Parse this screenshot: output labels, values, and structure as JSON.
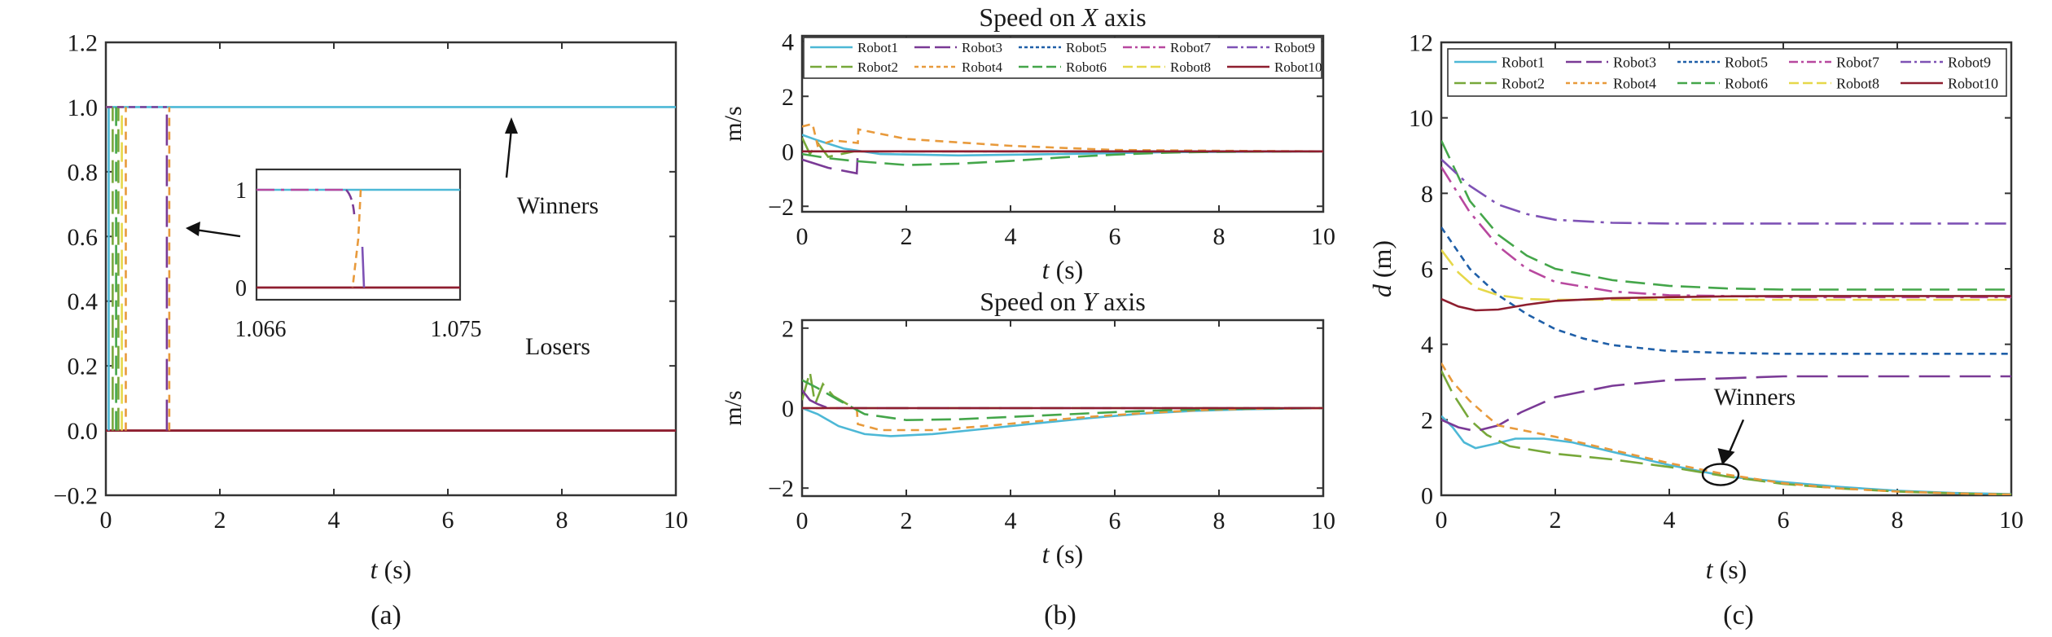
{
  "figure_labels": {
    "a": "(a)",
    "b": "(b)",
    "c": "(c)"
  },
  "colors": {
    "Robot1": "#4db8d6",
    "Robot2": "#77a83a",
    "Robot3": "#7a3a96",
    "Robot4": "#e89a3c",
    "Robot5": "#1f5fa8",
    "Robot6": "#44a64a",
    "Robot7": "#b8489f",
    "Robot8": "#e6d84a",
    "Robot9": "#7e52b5",
    "Robot10": "#8e1e2f"
  },
  "chart_data": [
    {
      "id": "a",
      "type": "line",
      "xlabel": "t (s)",
      "ylabel": "",
      "xlim": [
        0,
        10
      ],
      "ylim": [
        -0.2,
        1.2
      ],
      "xticks": [
        0,
        2,
        4,
        6,
        8,
        10
      ],
      "yticks": [
        -0.2,
        0.0,
        0.2,
        0.4,
        0.6,
        0.8,
        1.0,
        1.2
      ],
      "ytick_labels": [
        "−0.2",
        "0.0",
        "0.2",
        "0.4",
        "0.6",
        "0.8",
        "1.0",
        "1.2"
      ],
      "annotations": {
        "winners": "Winners",
        "losers": "Losers"
      },
      "switch_times": [
        0.05,
        0.12,
        0.18,
        0.22,
        0.28,
        0.35,
        1.07
      ],
      "winners_level": 1.0,
      "losers_level": 0.0,
      "inset": {
        "xlim": [
          1.066,
          1.075
        ],
        "xtick_labels": [
          "1.066",
          "1.075"
        ],
        "yticks": [
          "0",
          "1"
        ]
      }
    },
    {
      "id": "b1",
      "type": "line",
      "title": "Speed on X axis",
      "xlabel": "t (s)",
      "ylabel": "m/s",
      "xlim": [
        0,
        10
      ],
      "ylim": [
        -2.2,
        4.2
      ],
      "xticks": [
        0,
        2,
        4,
        6,
        8,
        10
      ],
      "yticks": [
        -2,
        0,
        2,
        4
      ],
      "ytick_labels": [
        "−2",
        "0",
        "2",
        "4"
      ],
      "legend": [
        "Robot1",
        "Robot3",
        "Robot5",
        "Robot7",
        "Robot9",
        "Robot2",
        "Robot4",
        "Robot6",
        "Robot8",
        "Robot10"
      ],
      "series": [
        {
          "name": "Robot1",
          "x": [
            0,
            0.3,
            0.8,
            1.5,
            3,
            5,
            7,
            10
          ],
          "y": [
            0.6,
            0.4,
            0.1,
            -0.1,
            -0.15,
            -0.1,
            -0.03,
            0
          ]
        },
        {
          "name": "Robot2",
          "x": [
            0,
            0.15,
            0.3,
            0.5,
            1,
            10
          ],
          "y": [
            0.5,
            -0.1,
            0.3,
            -0.2,
            0,
            0
          ]
        },
        {
          "name": "Robot3",
          "x": [
            0,
            0.5,
            1.05,
            1.07,
            2,
            10
          ],
          "y": [
            -0.3,
            -0.6,
            -0.8,
            0,
            0,
            0
          ]
        },
        {
          "name": "Robot4",
          "x": [
            0,
            0.2,
            0.3,
            0.6,
            1.07,
            1.08,
            2,
            4,
            6,
            8,
            10
          ],
          "y": [
            0.9,
            1.0,
            0.2,
            0.4,
            0.3,
            0.8,
            0.45,
            0.2,
            0.05,
            0.02,
            0
          ]
        },
        {
          "name": "Robot6",
          "x": [
            0,
            0.5,
            1,
            2,
            3,
            4,
            5,
            6,
            7,
            8,
            10
          ],
          "y": [
            -0.1,
            -0.25,
            -0.35,
            -0.5,
            -0.45,
            -0.35,
            -0.22,
            -0.12,
            -0.05,
            -0.02,
            0
          ]
        },
        {
          "name": "Robot10",
          "x": [
            0,
            10
          ],
          "y": [
            0,
            0
          ]
        }
      ]
    },
    {
      "id": "b2",
      "type": "line",
      "title": "Speed on Y axis",
      "xlabel": "t (s)",
      "ylabel": "m/s",
      "xlim": [
        0,
        10
      ],
      "ylim": [
        -2.2,
        2.2
      ],
      "xticks": [
        0,
        2,
        4,
        6,
        8,
        10
      ],
      "yticks": [
        -2,
        0,
        2
      ],
      "ytick_labels": [
        "−2",
        "0",
        "2"
      ],
      "series": [
        {
          "name": "Robot1",
          "x": [
            0,
            0.3,
            0.7,
            1.2,
            1.7,
            2.5,
            3.5,
            4.5,
            5.5,
            6.5,
            7.5,
            8.5,
            10
          ],
          "y": [
            0,
            -0.15,
            -0.45,
            -0.65,
            -0.7,
            -0.65,
            -0.52,
            -0.38,
            -0.25,
            -0.14,
            -0.07,
            -0.03,
            0
          ]
        },
        {
          "name": "Robot2",
          "x": [
            0,
            0.15,
            0.25,
            0.4,
            0.6,
            1.0,
            10
          ],
          "y": [
            0.2,
            0.9,
            0.1,
            0.6,
            0.3,
            0,
            0
          ]
        },
        {
          "name": "Robot3",
          "x": [
            0,
            0.15,
            0.3,
            0.5,
            10
          ],
          "y": [
            0.45,
            0.2,
            0.1,
            0,
            0
          ]
        },
        {
          "name": "Robot4",
          "x": [
            0,
            1.0,
            1.05,
            1.07,
            1.5,
            2.5,
            3.5,
            4.5,
            5.5,
            6.5,
            7.5,
            8.5,
            10
          ],
          "y": [
            0,
            0,
            0,
            -0.4,
            -0.55,
            -0.55,
            -0.45,
            -0.33,
            -0.22,
            -0.13,
            -0.06,
            -0.02,
            0
          ]
        },
        {
          "name": "Robot6",
          "x": [
            0,
            0.3,
            0.7,
            1.2,
            2,
            3,
            4,
            5,
            6,
            7,
            8,
            10
          ],
          "y": [
            0.7,
            0.5,
            0.2,
            -0.15,
            -0.3,
            -0.28,
            -0.22,
            -0.16,
            -0.1,
            -0.05,
            -0.02,
            0
          ]
        },
        {
          "name": "Robot10",
          "x": [
            0,
            10
          ],
          "y": [
            0,
            0
          ]
        }
      ]
    },
    {
      "id": "c",
      "type": "line",
      "xlabel": "t (s)",
      "ylabel": "d (m)",
      "xlim": [
        0,
        10
      ],
      "ylim": [
        0,
        12
      ],
      "xticks": [
        0,
        2,
        4,
        6,
        8,
        10
      ],
      "yticks": [
        0,
        2,
        4,
        6,
        8,
        10,
        12
      ],
      "legend": [
        "Robot1",
        "Robot3",
        "Robot5",
        "Robot7",
        "Robot9",
        "Robot2",
        "Robot4",
        "Robot6",
        "Robot8",
        "Robot10"
      ],
      "annotation": "Winners",
      "series": [
        {
          "name": "Robot1",
          "x": [
            0,
            0.2,
            0.4,
            0.6,
            0.9,
            1.3,
            1.8,
            2.3,
            3,
            4,
            5,
            6,
            7,
            8,
            9,
            10
          ],
          "y": [
            2.1,
            1.8,
            1.4,
            1.25,
            1.35,
            1.5,
            1.5,
            1.4,
            1.15,
            0.8,
            0.5,
            0.35,
            0.22,
            0.12,
            0.06,
            0.03
          ]
        },
        {
          "name": "Robot2",
          "x": [
            0,
            0.2,
            0.5,
            0.8,
            1.2,
            2,
            3,
            4,
            5,
            6,
            7,
            8,
            9,
            10
          ],
          "y": [
            3.3,
            2.7,
            2.0,
            1.6,
            1.3,
            1.1,
            0.95,
            0.75,
            0.5,
            0.3,
            0.18,
            0.1,
            0.05,
            0.02
          ]
        },
        {
          "name": "Robot3",
          "x": [
            0,
            0.3,
            0.6,
            1.0,
            1.4,
            2,
            3,
            4,
            5,
            6,
            7,
            8,
            9,
            10
          ],
          "y": [
            2.0,
            1.8,
            1.7,
            1.85,
            2.2,
            2.6,
            2.9,
            3.05,
            3.1,
            3.15,
            3.15,
            3.15,
            3.15,
            3.15
          ]
        },
        {
          "name": "Robot4",
          "x": [
            0,
            0.2,
            0.5,
            0.8,
            1.0,
            1.5,
            2,
            3,
            4,
            5,
            6,
            7,
            8,
            9,
            10
          ],
          "y": [
            3.5,
            3.0,
            2.5,
            2.1,
            1.85,
            1.7,
            1.55,
            1.2,
            0.85,
            0.55,
            0.32,
            0.18,
            0.1,
            0.05,
            0.02
          ]
        },
        {
          "name": "Robot5",
          "x": [
            0,
            0.5,
            1,
            1.5,
            2,
            2.5,
            3,
            4,
            5,
            6,
            7,
            8,
            9,
            10
          ],
          "y": [
            7.1,
            6.0,
            5.3,
            4.8,
            4.4,
            4.15,
            3.98,
            3.82,
            3.77,
            3.75,
            3.75,
            3.75,
            3.75,
            3.75
          ]
        },
        {
          "name": "Robot6",
          "x": [
            0,
            0.5,
            1,
            1.5,
            2,
            3,
            4,
            5,
            6,
            7,
            8,
            9,
            10
          ],
          "y": [
            9.4,
            7.8,
            6.9,
            6.35,
            6.0,
            5.7,
            5.55,
            5.48,
            5.45,
            5.45,
            5.45,
            5.45,
            5.45
          ]
        },
        {
          "name": "Robot7",
          "x": [
            0,
            0.5,
            1,
            1.5,
            2,
            3,
            4,
            5,
            6,
            7,
            8,
            9,
            10
          ],
          "y": [
            8.7,
            7.5,
            6.6,
            6.0,
            5.65,
            5.4,
            5.3,
            5.28,
            5.25,
            5.25,
            5.25,
            5.25,
            5.25
          ]
        },
        {
          "name": "Robot8",
          "x": [
            0,
            0.3,
            0.6,
            1,
            1.5,
            2,
            3,
            4,
            5,
            6,
            7,
            8,
            9,
            10
          ],
          "y": [
            6.5,
            5.9,
            5.5,
            5.3,
            5.2,
            5.18,
            5.18,
            5.18,
            5.18,
            5.18,
            5.18,
            5.18,
            5.18,
            5.18
          ]
        },
        {
          "name": "Robot9",
          "x": [
            0,
            0.5,
            1,
            1.5,
            2,
            3,
            4,
            5,
            6,
            7,
            8,
            9,
            10
          ],
          "y": [
            8.9,
            8.2,
            7.7,
            7.45,
            7.3,
            7.22,
            7.2,
            7.2,
            7.2,
            7.2,
            7.2,
            7.2,
            7.2
          ]
        },
        {
          "name": "Robot10",
          "x": [
            0,
            0.3,
            0.6,
            1,
            1.5,
            2,
            3,
            4,
            5,
            6,
            7,
            8,
            9,
            10
          ],
          "y": [
            5.2,
            5.0,
            4.9,
            4.92,
            5.05,
            5.15,
            5.22,
            5.25,
            5.27,
            5.28,
            5.28,
            5.28,
            5.28,
            5.28
          ]
        }
      ]
    }
  ]
}
